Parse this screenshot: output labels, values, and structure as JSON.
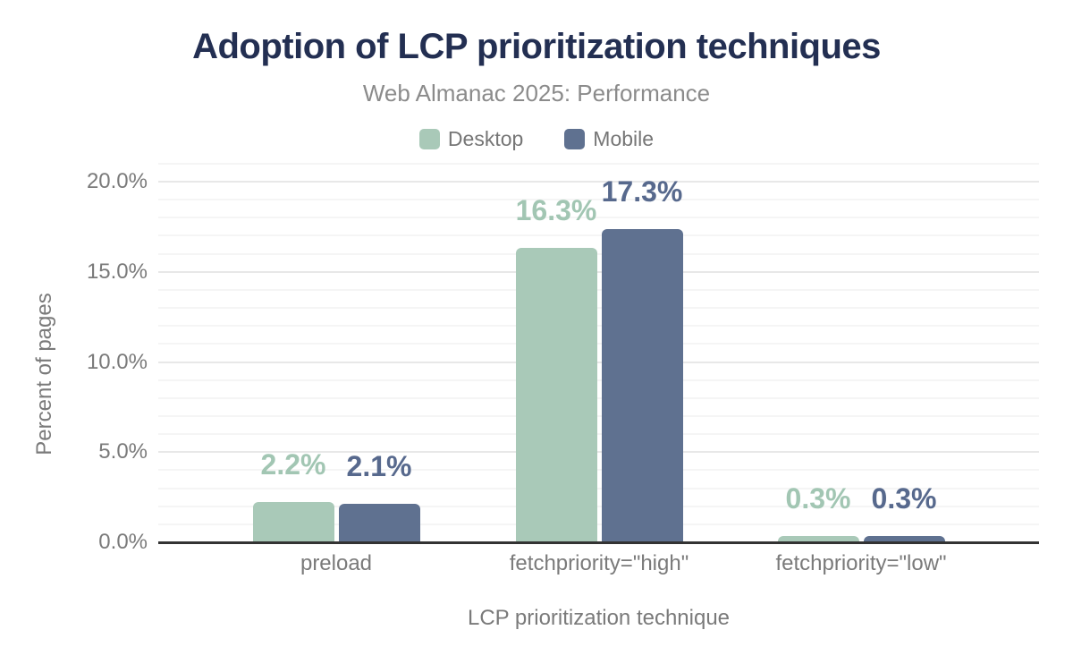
{
  "figure": {
    "title": "Adoption of LCP prioritization techniques",
    "subtitle": "Web Almanac 2025: Performance"
  },
  "legend": {
    "items": [
      {
        "label": "Desktop",
        "color": "#a9c9b8"
      },
      {
        "label": "Mobile",
        "color": "#5f7190"
      }
    ]
  },
  "chart_data": {
    "type": "bar",
    "title": "Adoption of LCP prioritization techniques",
    "subtitle": "Web Almanac 2025: Performance",
    "categories": [
      "preload",
      "fetchpriority=\"high\"",
      "fetchpriority=\"low\""
    ],
    "series": [
      {
        "name": "Desktop",
        "values": [
          2.2,
          16.3,
          0.3
        ],
        "labels": [
          "2.2%",
          "16.3%",
          "0.3%"
        ],
        "color": "#a9c9b8",
        "label_color": "#a2c6b3"
      },
      {
        "name": "Mobile",
        "values": [
          2.1,
          17.3,
          0.3
        ],
        "labels": [
          "2.1%",
          "17.3%",
          "0.3%"
        ],
        "color": "#5f7190",
        "label_color": "#57698d"
      }
    ],
    "xlabel": "LCP prioritization technique",
    "ylabel": "Percent of pages",
    "y_ticks": [
      {
        "value": 0,
        "label": "0.0%"
      },
      {
        "value": 5,
        "label": "5.0%"
      },
      {
        "value": 10,
        "label": "10.0%"
      },
      {
        "value": 15,
        "label": "15.0%"
      },
      {
        "value": 20,
        "label": "20.0%"
      }
    ],
    "ylim": [
      0,
      21
    ],
    "grid": {
      "orientation": "horizontal",
      "minor_every": 1,
      "major_every": 5
    },
    "legend_position": "top"
  },
  "colors": {
    "background": "#ffffff",
    "title": "#232f52",
    "subtitle": "#8b8b8b",
    "axis_text": "#7a7a7a",
    "grid_major": "#e8e8e8",
    "grid_minor": "#f5f5f5",
    "axis_line": "#333333"
  }
}
